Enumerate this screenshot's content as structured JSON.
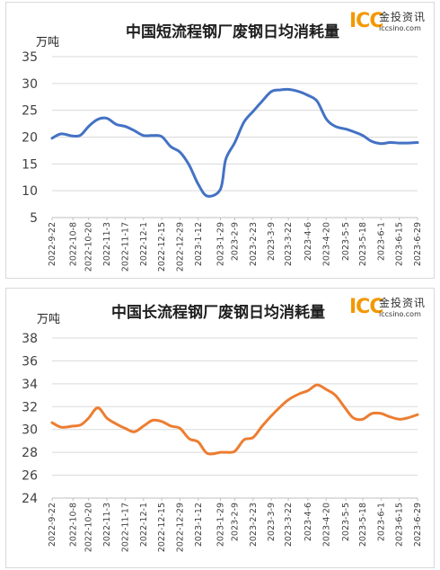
{
  "chart_data": [
    {
      "type": "line",
      "title": "中国短流程钢厂废钢日均消耗量",
      "unit_label": "万吨",
      "ylim": [
        5,
        35
      ],
      "yticks": [
        5,
        10,
        15,
        20,
        25,
        30,
        35
      ],
      "grid": true,
      "legend": "none",
      "line_color": "#4472c4",
      "xticklabels": [
        "2022-9-22",
        "2022-10-8",
        "2022-10-20",
        "2022-11-3",
        "2022-11-17",
        "2022-12-1",
        "2022-12-15",
        "2022-12-29",
        "2023-1-12",
        "2023-1-29",
        "2023-2-9",
        "2023-2-23",
        "2023-3-9",
        "2023-3-22",
        "2023-4-6",
        "2023-4-20",
        "2023-5-5",
        "2023-5-18",
        "2023-6-1",
        "2023-6-15",
        "2023-6-29"
      ],
      "x": [
        "2022-9-22",
        "2022-9-29",
        "2022-10-8",
        "2022-10-14",
        "2022-10-20",
        "2022-10-27",
        "2022-11-3",
        "2022-11-10",
        "2022-11-17",
        "2022-11-24",
        "2022-12-1",
        "2022-12-8",
        "2022-12-15",
        "2022-12-22",
        "2022-12-29",
        "2023-1-5",
        "2023-1-12",
        "2023-1-19",
        "2023-1-29",
        "2023-2-2",
        "2023-2-9",
        "2023-2-16",
        "2023-2-23",
        "2023-3-2",
        "2023-3-9",
        "2023-3-16",
        "2023-3-22",
        "2023-3-30",
        "2023-4-6",
        "2023-4-13",
        "2023-4-20",
        "2023-4-27",
        "2023-5-5",
        "2023-5-11",
        "2023-5-18",
        "2023-5-25",
        "2023-6-1",
        "2023-6-8",
        "2023-6-15",
        "2023-6-21",
        "2023-6-29"
      ],
      "values": [
        19.8,
        20.6,
        20.2,
        20.4,
        22.0,
        23.3,
        23.5,
        22.4,
        22.0,
        21.2,
        20.3,
        20.3,
        20.1,
        18.2,
        17.2,
        14.8,
        11.2,
        9.0,
        10.3,
        15.8,
        19.0,
        22.8,
        24.8,
        26.7,
        28.5,
        28.8,
        28.9,
        28.5,
        27.8,
        26.7,
        23.4,
        22.0,
        21.5,
        21.0,
        20.3,
        19.2,
        18.8,
        19.0,
        18.9,
        18.9,
        19.0
      ]
    },
    {
      "type": "line",
      "title": "中国长流程钢厂废钢日均消耗量",
      "unit_label": "万吨",
      "ylim": [
        24,
        38
      ],
      "yticks": [
        24,
        26,
        28,
        30,
        32,
        34,
        36,
        38
      ],
      "grid": true,
      "legend": "none",
      "line_color": "#ed7d31",
      "xticklabels": [
        "2022-9-22",
        "2022-10-8",
        "2022-10-20",
        "2022-11-3",
        "2022-11-17",
        "2022-12-1",
        "2022-12-15",
        "2022-12-29",
        "2023-1-12",
        "2023-1-29",
        "2023-2-9",
        "2023-2-23",
        "2023-3-9",
        "2023-3-22",
        "2023-4-6",
        "2023-4-20",
        "2023-5-5",
        "2023-5-18",
        "2023-6-1",
        "2023-6-15",
        "2023-6-29"
      ],
      "x": [
        "2022-9-22",
        "2022-9-29",
        "2022-10-8",
        "2022-10-14",
        "2022-10-20",
        "2022-10-27",
        "2022-11-3",
        "2022-11-10",
        "2022-11-17",
        "2022-11-24",
        "2022-12-1",
        "2022-12-8",
        "2022-12-15",
        "2022-12-22",
        "2022-12-29",
        "2023-1-5",
        "2023-1-12",
        "2023-1-19",
        "2023-1-29",
        "2023-2-2",
        "2023-2-9",
        "2023-2-16",
        "2023-2-23",
        "2023-3-2",
        "2023-3-9",
        "2023-3-16",
        "2023-3-22",
        "2023-3-30",
        "2023-4-6",
        "2023-4-13",
        "2023-4-20",
        "2023-4-27",
        "2023-5-5",
        "2023-5-11",
        "2023-5-18",
        "2023-5-25",
        "2023-6-1",
        "2023-6-8",
        "2023-6-15",
        "2023-6-21",
        "2023-6-29"
      ],
      "values": [
        30.6,
        30.2,
        30.3,
        30.4,
        31.0,
        31.9,
        31.0,
        30.5,
        30.1,
        29.8,
        30.3,
        30.8,
        30.7,
        30.3,
        30.1,
        29.2,
        28.9,
        27.9,
        28.0,
        28.0,
        28.1,
        29.1,
        29.3,
        30.3,
        31.2,
        32.0,
        32.6,
        33.1,
        33.4,
        33.9,
        33.5,
        33.0,
        31.8,
        31.0,
        30.9,
        31.4,
        31.4,
        31.1,
        30.9,
        31.0,
        31.3
      ]
    }
  ],
  "logo": {
    "mark": "ICC",
    "cn_text": "金投资讯",
    "url": "iccsino.com"
  },
  "colors": {
    "logo_orange": "#f39800",
    "grid": "#d9d9d9"
  }
}
